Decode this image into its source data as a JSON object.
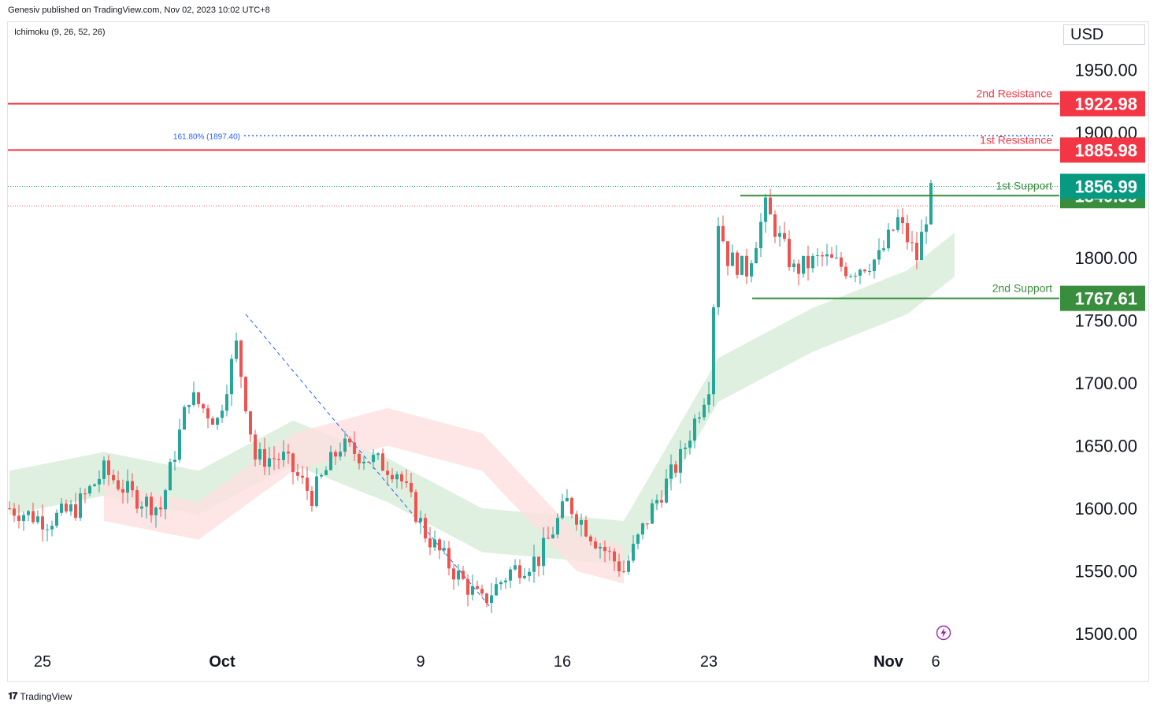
{
  "header": {
    "publisher": "Genesiv published on TradingView.com, Nov 02, 2023 10:02 UTC+8",
    "indicator": "Ichimoku (9, 26, 52, 26)",
    "currency": "USD"
  },
  "footer": {
    "brand": "TradingView"
  },
  "colors": {
    "up": "#26a69a",
    "down": "#ef5350",
    "resistance": "#f23645",
    "support": "#388e3c",
    "current": "#089981",
    "cloud_bull": "#d7ecd8",
    "cloud_bear": "#fde0de",
    "fib": "#2962ff"
  },
  "chart_data": {
    "type": "candlestick",
    "y_axis": {
      "ticks": [
        "1950.00",
        "1900.00",
        "1850.00",
        "1800.00",
        "1750.00",
        "1700.00",
        "1650.00",
        "1600.00",
        "1550.00",
        "1500.00"
      ],
      "ylim": [
        1490,
        1968
      ]
    },
    "x_axis": {
      "ticks": [
        {
          "label": "25",
          "bold": false,
          "index": 7
        },
        {
          "label": "Oct",
          "bold": true,
          "index": 45
        },
        {
          "label": "9",
          "bold": false,
          "index": 87
        },
        {
          "label": "16",
          "bold": false,
          "index": 117
        },
        {
          "label": "23",
          "bold": false,
          "index": 148
        },
        {
          "label": "Nov",
          "bold": true,
          "index": 186
        },
        {
          "label": "6",
          "bold": false,
          "index": 196
        }
      ]
    },
    "levels": [
      {
        "name": "2nd Resistance",
        "value": 1922.98,
        "kind": "resistance"
      },
      {
        "name": "1st Resistance",
        "value": 1885.98,
        "kind": "resistance"
      },
      {
        "name": "1st Support",
        "value": 1849.59,
        "kind": "support"
      },
      {
        "name": "2nd Support",
        "value": 1767.61,
        "kind": "support"
      }
    ],
    "current_price": 1856.99,
    "fib": {
      "label": "161.80% (1897.40)",
      "value": 1897.4
    },
    "price_path": [
      [
        0,
        1600
      ],
      [
        8,
        1590
      ],
      [
        14,
        1600
      ],
      [
        20,
        1630
      ],
      [
        26,
        1610
      ],
      [
        32,
        1600
      ],
      [
        38,
        1690
      ],
      [
        44,
        1670
      ],
      [
        48,
        1730
      ],
      [
        52,
        1640
      ],
      [
        58,
        1640
      ],
      [
        64,
        1610
      ],
      [
        70,
        1650
      ],
      [
        76,
        1640
      ],
      [
        82,
        1630
      ],
      [
        88,
        1580
      ],
      [
        94,
        1550
      ],
      [
        100,
        1525
      ],
      [
        106,
        1550
      ],
      [
        112,
        1560
      ],
      [
        118,
        1605
      ],
      [
        124,
        1575
      ],
      [
        130,
        1550
      ],
      [
        136,
        1600
      ],
      [
        142,
        1640
      ],
      [
        148,
        1700
      ],
      [
        150,
        1830
      ],
      [
        152,
        1800
      ],
      [
        156,
        1790
      ],
      [
        160,
        1840
      ],
      [
        166,
        1790
      ],
      [
        172,
        1800
      ],
      [
        178,
        1790
      ],
      [
        184,
        1800
      ],
      [
        188,
        1830
      ],
      [
        192,
        1800
      ],
      [
        195,
        1851
      ]
    ],
    "cloud": {
      "bull_top": [
        [
          0,
          1630
        ],
        [
          20,
          1645
        ],
        [
          40,
          1630
        ],
        [
          60,
          1670
        ],
        [
          80,
          1640
        ],
        [
          100,
          1600
        ],
        [
          130,
          1590
        ],
        [
          150,
          1720
        ],
        [
          170,
          1760
        ],
        [
          190,
          1790
        ],
        [
          200,
          1820
        ]
      ],
      "bear": [
        [
          20,
          1620
        ],
        [
          40,
          1605
        ],
        [
          60,
          1660
        ],
        [
          80,
          1680
        ],
        [
          100,
          1660
        ],
        [
          110,
          1620
        ],
        [
          120,
          1580
        ],
        [
          130,
          1570
        ]
      ]
    }
  }
}
